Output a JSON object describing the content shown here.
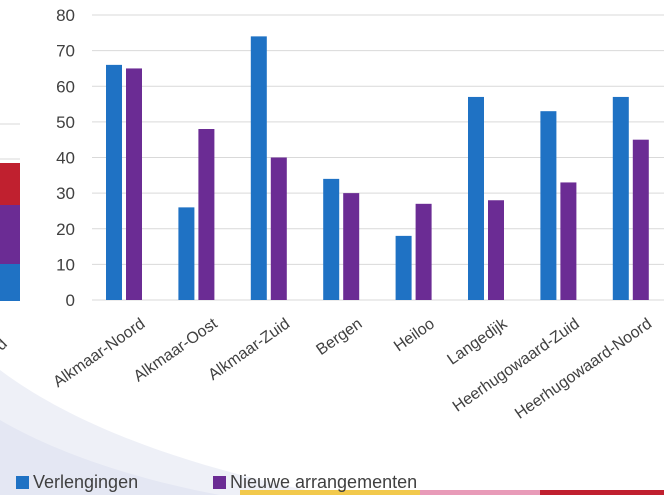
{
  "chart_data": {
    "type": "bar",
    "title": "",
    "xlabel": "",
    "ylabel": "",
    "ylim": [
      0,
      80
    ],
    "yticks": [
      0,
      10,
      20,
      30,
      40,
      50,
      60,
      70,
      80
    ],
    "grid": true,
    "legend_position": "bottom",
    "categories": [
      "Alkmaar-Noord",
      "Alkmaar-Oost",
      "Alkmaar-Zuid",
      "Bergen",
      "Heiloo",
      "Langedijk",
      "Heerhugowaard-Zuid",
      "Heerhugowaard-Noord"
    ],
    "series": [
      {
        "name": "Verlengingen",
        "color": "#1f72c4",
        "values": [
          66,
          26,
          74,
          34,
          18,
          57,
          53,
          57
        ]
      },
      {
        "name": "Nieuwe arrangementen",
        "color": "#6b2c94",
        "values": [
          65,
          48,
          40,
          30,
          27,
          28,
          33,
          45
        ]
      }
    ]
  },
  "left_fragment": {
    "segment_colors": [
      "#1f72c4",
      "#6b2c94",
      "#c0202f"
    ],
    "axis_label_fragment": "d"
  }
}
